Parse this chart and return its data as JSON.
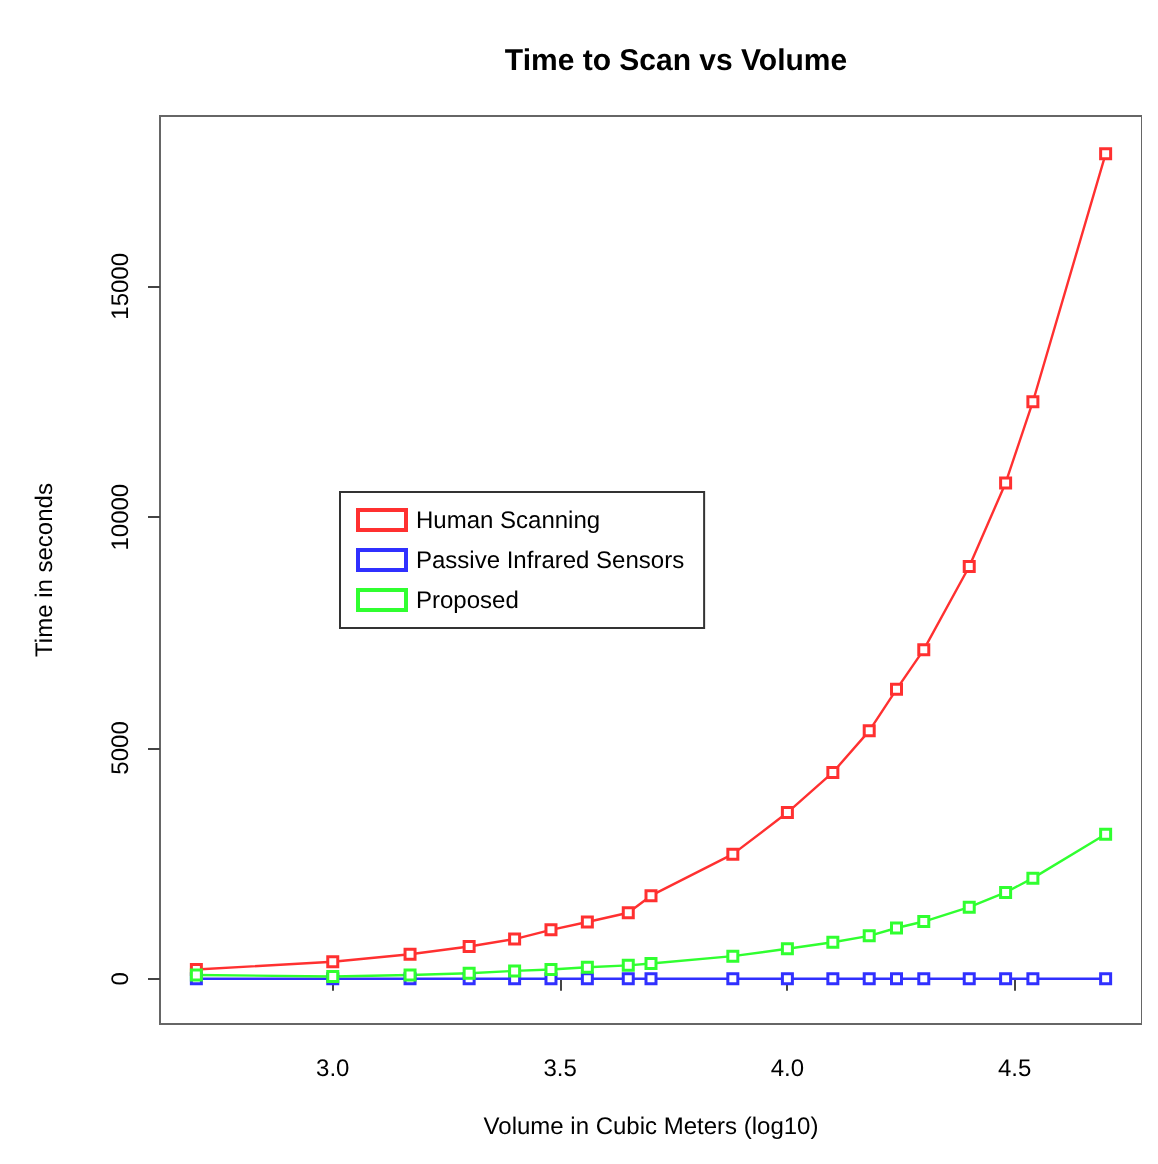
{
  "chart_data": {
    "type": "line",
    "title": "Time to Scan vs Volume",
    "xlabel": "Volume in Cubic Meters (log10)",
    "ylabel": "Time in seconds",
    "x": [
      2.7,
      3.0,
      3.17,
      3.3,
      3.4,
      3.48,
      3.56,
      3.65,
      3.7,
      3.88,
      4.0,
      4.1,
      4.18,
      4.24,
      4.3,
      4.4,
      4.48,
      4.54,
      4.7
    ],
    "series": [
      {
        "name": "Human Scanning",
        "color": "#ff3030",
        "values": [
          200,
          370,
          530,
          700,
          860,
          1060,
          1230,
          1430,
          1800,
          2700,
          3600,
          4470,
          5370,
          6270,
          7130,
          8930,
          10740,
          12500,
          17870
        ]
      },
      {
        "name": "Passive Infrared Sensors",
        "color": "#3030ff",
        "values": [
          0,
          0,
          0,
          0,
          0,
          0,
          0,
          0,
          0,
          0,
          0,
          0,
          0,
          0,
          0,
          0,
          0,
          0,
          0
        ]
      },
      {
        "name": "Proposed",
        "color": "#30ff30",
        "values": [
          80,
          50,
          80,
          120,
          170,
          200,
          250,
          290,
          330,
          490,
          650,
          790,
          930,
          1100,
          1240,
          1550,
          1870,
          2180,
          3130
        ]
      }
    ],
    "xlim": [
      2.62,
      4.78
    ],
    "xticks": [
      {
        "value": 3,
        "label": "3.0"
      },
      3.5,
      {
        "value": 4,
        "label": "4.0"
      },
      4.5
    ],
    "ylim": [
      -980,
      18690
    ],
    "yticks": [
      0,
      5000,
      10000,
      15000
    ],
    "grid": false,
    "legend": "left",
    "marker": "square"
  }
}
